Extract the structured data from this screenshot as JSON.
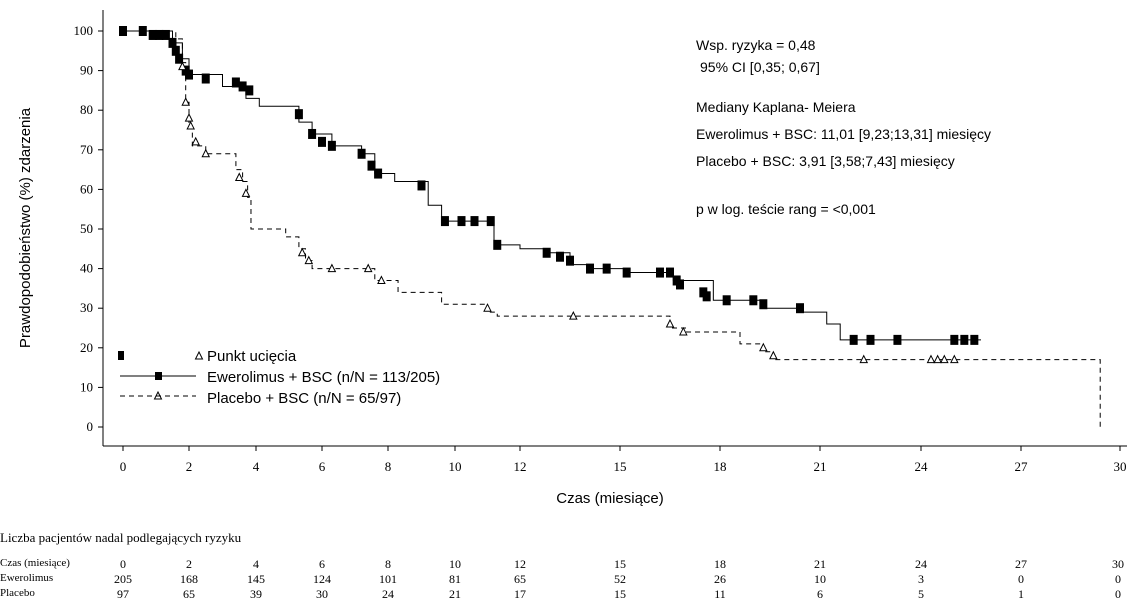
{
  "chart_data": {
    "type": "line",
    "subtype": "kaplan-meier",
    "xlabel": "Czas (miesiące)",
    "ylabel": "Prawdopodobieństwo (%) zdarzenia",
    "xlim": [
      0,
      30
    ],
    "ylim": [
      0,
      100
    ],
    "x_ticks": [
      0,
      2,
      4,
      6,
      8,
      10,
      12,
      15,
      18,
      21,
      24,
      27,
      30
    ],
    "y_ticks": [
      0,
      10,
      20,
      30,
      40,
      50,
      60,
      70,
      80,
      90,
      100
    ],
    "series": [
      {
        "name": "Ewerolimus + BSC (n/N = 113/205)",
        "style": "solid",
        "marker": "square",
        "color": "#000000",
        "steps": [
          [
            0,
            100
          ],
          [
            1.5,
            97
          ],
          [
            1.8,
            93
          ],
          [
            2.0,
            89
          ],
          [
            3.0,
            86
          ],
          [
            3.7,
            83
          ],
          [
            4.1,
            81
          ],
          [
            5.3,
            77
          ],
          [
            5.7,
            74
          ],
          [
            6.3,
            71
          ],
          [
            7.2,
            69
          ],
          [
            7.6,
            64
          ],
          [
            8.2,
            62
          ],
          [
            9.2,
            56
          ],
          [
            9.6,
            52
          ],
          [
            11.2,
            46
          ],
          [
            12.0,
            45
          ],
          [
            12.8,
            44
          ],
          [
            13.5,
            41
          ],
          [
            14.2,
            40
          ],
          [
            15.2,
            39
          ],
          [
            16.6,
            37
          ],
          [
            17.8,
            32
          ],
          [
            19.2,
            30
          ],
          [
            20.4,
            29
          ],
          [
            21.2,
            26
          ],
          [
            21.6,
            22
          ],
          [
            25.8,
            22
          ]
        ],
        "censored": [
          [
            0,
            100
          ],
          [
            0.6,
            100
          ],
          [
            0.9,
            99
          ],
          [
            1.1,
            99
          ],
          [
            1.3,
            99
          ],
          [
            1.5,
            97
          ],
          [
            1.6,
            95
          ],
          [
            1.7,
            93
          ],
          [
            1.9,
            90
          ],
          [
            2.0,
            89
          ],
          [
            2.5,
            88
          ],
          [
            3.4,
            87
          ],
          [
            3.6,
            86
          ],
          [
            3.8,
            85
          ],
          [
            5.3,
            79
          ],
          [
            5.7,
            74
          ],
          [
            6.0,
            72
          ],
          [
            6.3,
            71
          ],
          [
            7.2,
            69
          ],
          [
            7.5,
            66
          ],
          [
            7.7,
            64
          ],
          [
            9.0,
            61
          ],
          [
            9.7,
            52
          ],
          [
            10.2,
            52
          ],
          [
            10.6,
            52
          ],
          [
            11.1,
            52
          ],
          [
            11.3,
            46
          ],
          [
            12.8,
            44
          ],
          [
            13.2,
            43
          ],
          [
            13.5,
            42
          ],
          [
            14.1,
            40
          ],
          [
            14.6,
            40
          ],
          [
            15.2,
            39
          ],
          [
            16.2,
            39
          ],
          [
            16.5,
            39
          ],
          [
            16.7,
            37
          ],
          [
            16.8,
            36
          ],
          [
            17.5,
            34
          ],
          [
            17.6,
            33
          ],
          [
            18.2,
            32
          ],
          [
            19.0,
            32
          ],
          [
            19.3,
            31
          ],
          [
            20.4,
            30
          ],
          [
            22.0,
            22
          ],
          [
            22.5,
            22
          ],
          [
            23.3,
            22
          ],
          [
            25.0,
            22
          ],
          [
            25.3,
            22
          ],
          [
            25.6,
            22
          ]
        ]
      },
      {
        "name": "Placebo + BSC (n/N = 65/97)",
        "style": "dashed",
        "marker": "triangle",
        "color": "#000000",
        "steps": [
          [
            0,
            100
          ],
          [
            1.6,
            98
          ],
          [
            1.8,
            92
          ],
          [
            1.9,
            82
          ],
          [
            2.0,
            76
          ],
          [
            2.1,
            71
          ],
          [
            2.5,
            69
          ],
          [
            3.4,
            65
          ],
          [
            3.6,
            62
          ],
          [
            3.75,
            58
          ],
          [
            3.85,
            50
          ],
          [
            4.9,
            48
          ],
          [
            5.3,
            45
          ],
          [
            5.5,
            42
          ],
          [
            5.7,
            40
          ],
          [
            7.6,
            37
          ],
          [
            8.3,
            34
          ],
          [
            9.6,
            31
          ],
          [
            11.0,
            29
          ],
          [
            11.3,
            28
          ],
          [
            16.5,
            25
          ],
          [
            17.0,
            24
          ],
          [
            18.6,
            21
          ],
          [
            19.3,
            19
          ],
          [
            19.6,
            17
          ],
          [
            29.4,
            17
          ],
          [
            29.4,
            0
          ]
        ],
        "censored": [
          [
            1.8,
            91
          ],
          [
            1.9,
            82
          ],
          [
            2.0,
            78
          ],
          [
            2.05,
            76
          ],
          [
            2.2,
            72
          ],
          [
            2.5,
            69
          ],
          [
            3.5,
            63
          ],
          [
            3.7,
            59
          ],
          [
            5.4,
            44
          ],
          [
            5.6,
            42
          ],
          [
            6.3,
            40
          ],
          [
            7.4,
            40
          ],
          [
            7.8,
            37
          ],
          [
            11.0,
            30
          ],
          [
            13.6,
            28
          ],
          [
            16.5,
            26
          ],
          [
            16.9,
            24
          ],
          [
            19.3,
            20
          ],
          [
            19.6,
            18
          ],
          [
            22.3,
            17
          ],
          [
            24.3,
            17
          ],
          [
            24.5,
            17
          ],
          [
            24.7,
            17
          ],
          [
            25.0,
            17
          ]
        ]
      }
    ],
    "legend_position": "bottom-left",
    "legend_censor_label": "Punkt ucięcia",
    "annotations": [
      "Wsp. ryzyka = 0,48",
      "95% CI [0,35; 0,67]",
      "Mediany Kaplana- Meiera",
      "Ewerolimus + BSC: 11,01 [9,23;13,31] miesięcy",
      "Placebo + BSC: 3,91 [3,58;7,43] miesięcy",
      "p w log. teście rang = <0,001"
    ],
    "grid": false
  },
  "risk_table": {
    "title": "Liczba pacjentów nadal podlegających ryzyku",
    "time_label": "Czas (miesiące)",
    "times": [
      "0",
      "2",
      "4",
      "6",
      "8",
      "10",
      "12",
      "15",
      "18",
      "21",
      "24",
      "27",
      "30"
    ],
    "rows": [
      {
        "label": "Ewerolimus",
        "values": [
          "205",
          "168",
          "145",
          "124",
          "101",
          "81",
          "65",
          "52",
          "26",
          "10",
          "3",
          "0",
          "0"
        ]
      },
      {
        "label": "Placebo",
        "values": [
          "97",
          "65",
          "39",
          "30",
          "24",
          "21",
          "17",
          "15",
          "11",
          "6",
          "5",
          "1",
          "0"
        ]
      }
    ]
  }
}
